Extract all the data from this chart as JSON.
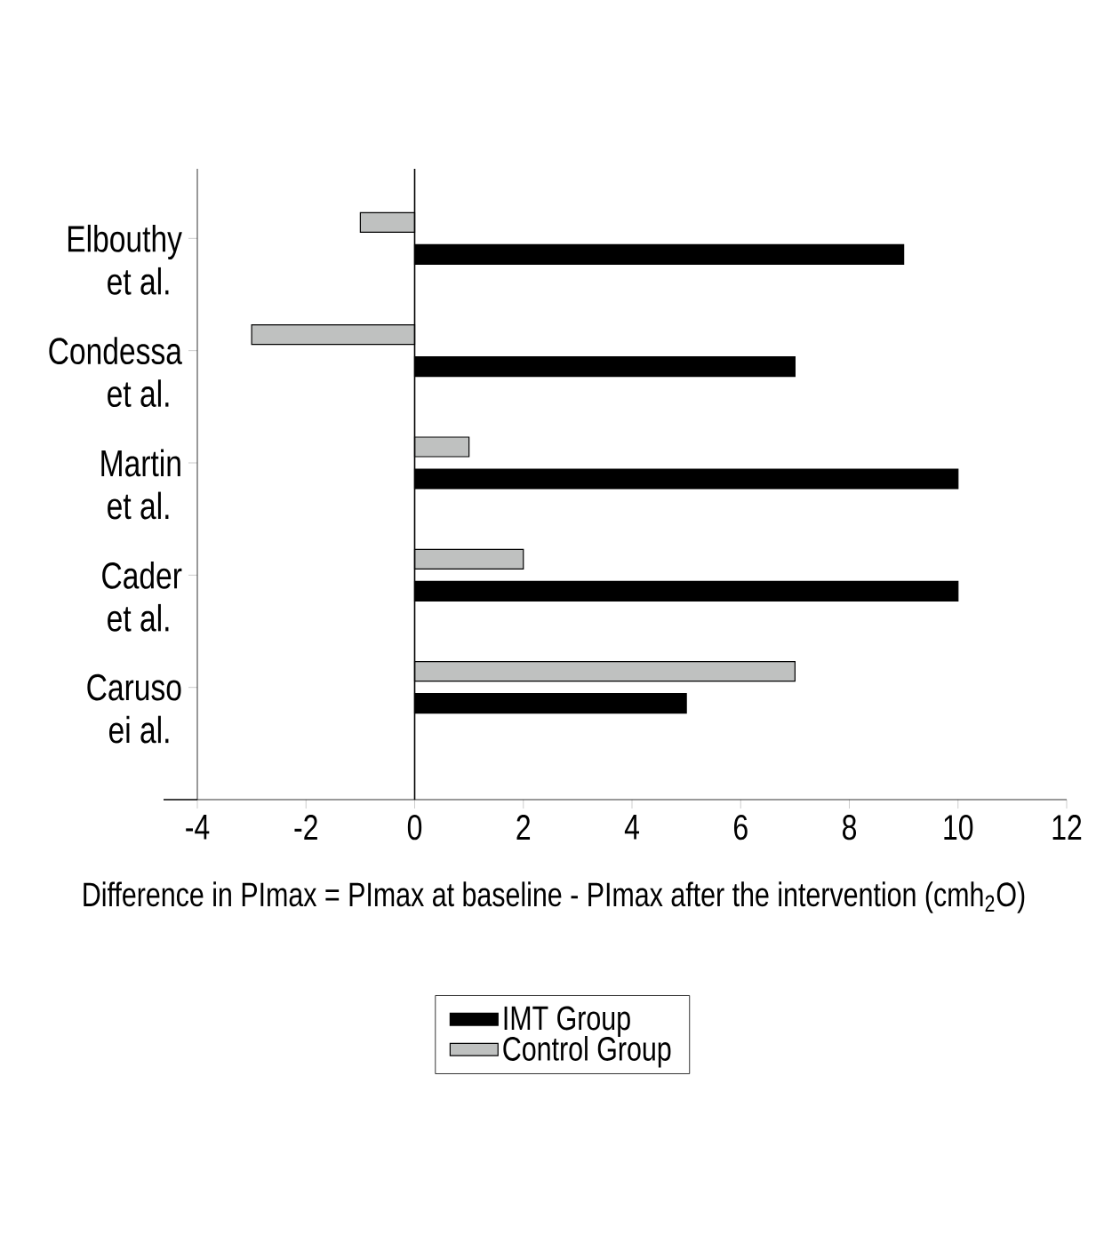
{
  "chart_data": {
    "type": "bar",
    "orientation": "horizontal",
    "xlabel": "Difference in PImax = PImax at baseline - PImax after the intervention (cmh$_{2}$O)",
    "categories": [
      "Elbouthy et al.",
      "Condessa et al.",
      "Martin et al.",
      "Cader et al.",
      "Caruso ei al."
    ],
    "series": [
      {
        "name": "IMT Group",
        "color": "#000000",
        "values": [
          9,
          7,
          10,
          10,
          5
        ]
      },
      {
        "name": "Control Group",
        "color": "#bfc1c0",
        "values": [
          -1,
          -3,
          1,
          2,
          7
        ]
      }
    ],
    "xlim": [
      -4,
      12
    ],
    "xticks": [
      -4,
      -2,
      0,
      2,
      4,
      6,
      8,
      10,
      12
    ],
    "legend": "bottom"
  }
}
